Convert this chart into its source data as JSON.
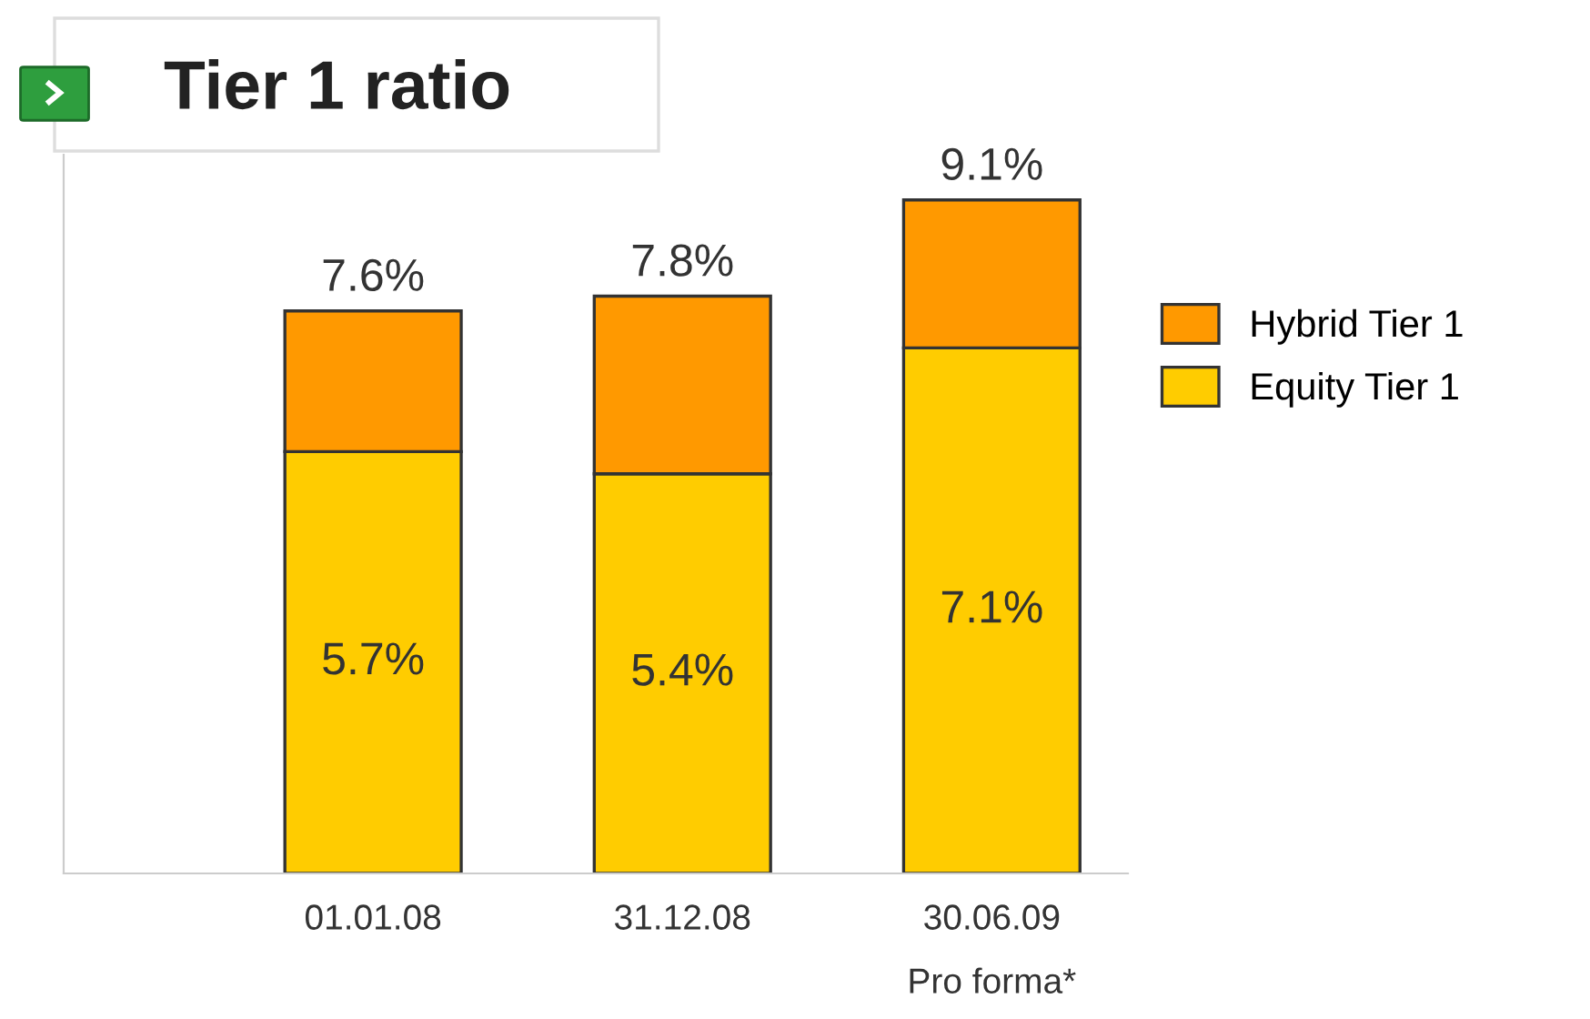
{
  "chart_data": {
    "type": "bar",
    "title": "Tier 1 ratio",
    "stacked": true,
    "categories": [
      "01.01.08",
      "31.12.08",
      "30.06.09\nPro forma*"
    ],
    "series": [
      {
        "name": "Equity Tier 1",
        "color": "#ffcc00",
        "values": [
          5.7,
          5.4,
          7.1
        ],
        "value_labels": [
          "5.7%",
          "5.4%",
          "7.1%"
        ]
      },
      {
        "name": "Hybrid Tier 1",
        "color": "#ff9900",
        "values": [
          1.9,
          2.4,
          2.0
        ],
        "value_labels": [
          null,
          null,
          null
        ]
      }
    ],
    "totals": [
      "7.6%",
      "7.8%",
      "9.1%"
    ],
    "legend": "right"
  }
}
